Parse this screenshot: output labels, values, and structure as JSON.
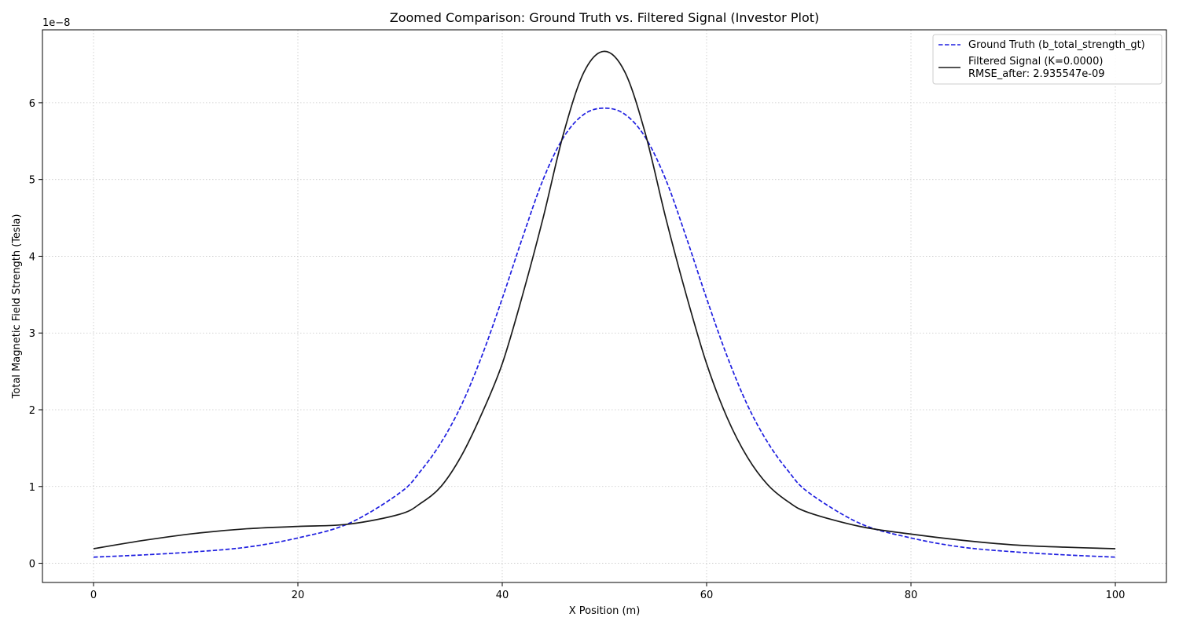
{
  "chart_data": {
    "type": "line",
    "title": "Zoomed Comparison: Ground Truth vs. Filtered Signal (Investor Plot)",
    "xlabel": "X Position (m)",
    "ylabel": "Total Magnetic Field Strength (Tesla)",
    "y_offset_label": "1e−8",
    "xlim": [
      -5,
      105
    ],
    "ylim": [
      -0.25,
      6.95
    ],
    "y_scale_note": "values in units of 1e-8 Tesla",
    "x_ticks": [
      0,
      20,
      40,
      60,
      80,
      100
    ],
    "y_ticks": [
      0,
      1,
      2,
      3,
      4,
      5,
      6
    ],
    "x_tick_labels": [
      "0",
      "20",
      "40",
      "60",
      "80",
      "100"
    ],
    "y_tick_labels": [
      "0",
      "1",
      "2",
      "3",
      "4",
      "5",
      "6"
    ],
    "grid": true,
    "legend_position": "top-right",
    "legend": [
      {
        "label": "Ground Truth (b_total_strength_gt)",
        "style": "dashed",
        "color": "#1f1fe0"
      },
      {
        "label": "Filtered Signal (K=0.0000)",
        "label2": "RMSE_after: 2.935547e-09",
        "style": "solid",
        "color": "#1a1a1a"
      }
    ],
    "x": [
      0,
      5,
      10,
      15,
      20,
      25,
      30,
      32,
      34,
      36,
      38,
      40,
      42,
      44,
      46,
      48,
      50,
      52,
      54,
      56,
      58,
      60,
      62,
      64,
      66,
      68,
      70,
      75,
      80,
      85,
      90,
      95,
      100
    ],
    "series": [
      {
        "name": "Ground Truth (b_total_strength_gt)",
        "values": [
          0.08,
          0.11,
          0.15,
          0.21,
          0.33,
          0.52,
          0.92,
          1.2,
          1.57,
          2.06,
          2.7,
          3.45,
          4.25,
          5.0,
          5.55,
          5.85,
          5.93,
          5.85,
          5.55,
          5.0,
          4.25,
          3.45,
          2.7,
          2.06,
          1.57,
          1.2,
          0.92,
          0.52,
          0.33,
          0.21,
          0.15,
          0.11,
          0.08
        ]
      },
      {
        "name": "Filtered Signal (K=0.0000)",
        "values": [
          0.19,
          0.3,
          0.39,
          0.45,
          0.48,
          0.51,
          0.64,
          0.78,
          1.0,
          1.4,
          1.95,
          2.6,
          3.5,
          4.5,
          5.6,
          6.4,
          6.67,
          6.4,
          5.6,
          4.5,
          3.5,
          2.6,
          1.9,
          1.38,
          1.02,
          0.8,
          0.66,
          0.48,
          0.38,
          0.3,
          0.24,
          0.21,
          0.19
        ]
      }
    ]
  }
}
